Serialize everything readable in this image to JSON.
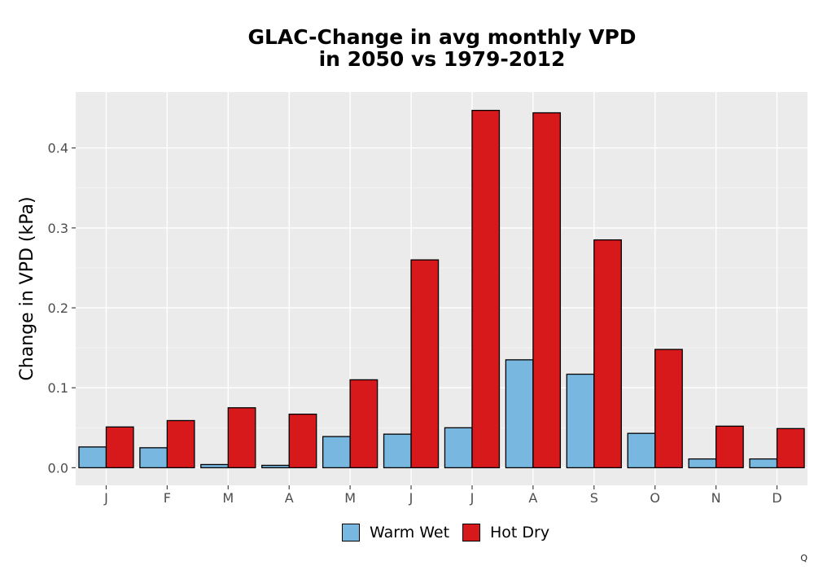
{
  "title_line1": "GLAC-Change in avg monthly VPD",
  "title_line2": "in 2050 vs 1979-2012",
  "corner_mark": "Q",
  "chart_data": {
    "type": "bar",
    "title": "GLAC-Change in avg monthly VPD in 2050 vs 1979-2012",
    "xlabel": "",
    "ylabel": "Change in VPD (kPa)",
    "categories": [
      "J",
      "F",
      "M",
      "A",
      "M",
      "J",
      "J",
      "A",
      "S",
      "O",
      "N",
      "D"
    ],
    "series": [
      {
        "name": "Warm Wet",
        "color": "#78b8e0",
        "values": [
          0.026,
          0.025,
          0.004,
          0.003,
          0.039,
          0.042,
          0.05,
          0.135,
          0.117,
          0.043,
          0.011,
          0.011
        ]
      },
      {
        "name": "Hot Dry",
        "color": "#d7191c",
        "values": [
          0.051,
          0.059,
          0.075,
          0.067,
          0.11,
          0.26,
          0.447,
          0.444,
          0.285,
          0.148,
          0.052,
          0.049
        ]
      }
    ],
    "ylim": [
      -0.022,
      0.47
    ],
    "yticks": [
      0.0,
      0.1,
      0.2,
      0.3,
      0.4
    ],
    "ytick_labels": [
      "0.0",
      "0.1",
      "0.2",
      "0.3",
      "0.4"
    ],
    "grid": true,
    "legend_position": "bottom"
  }
}
